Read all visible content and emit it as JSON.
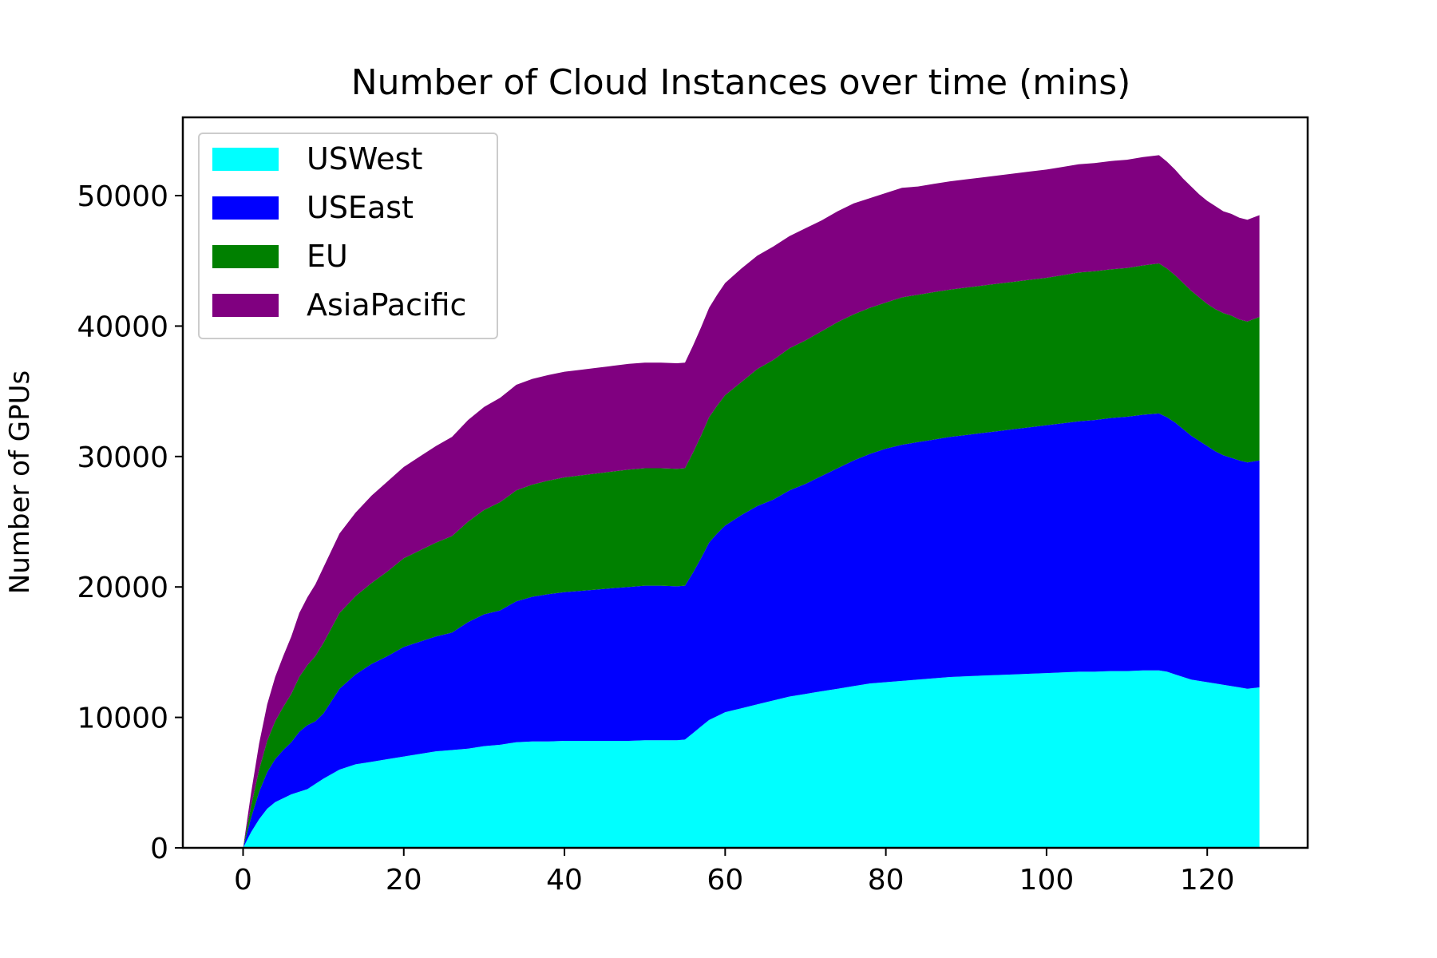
{
  "chart_data": {
    "type": "area",
    "stacked": true,
    "title": "Number of Cloud Instances over time (mins)",
    "xlabel": "",
    "ylabel": "Number of GPUs",
    "xlim": [
      -7.5,
      132.5
    ],
    "ylim": [
      0,
      56000
    ],
    "xticks": [
      0,
      20,
      40,
      60,
      80,
      100,
      120
    ],
    "yticks": [
      0,
      10000,
      20000,
      30000,
      40000,
      50000
    ],
    "legend_position": "upper-left",
    "x": [
      0,
      1,
      2,
      3,
      4,
      5,
      6,
      7,
      8,
      9,
      10,
      12,
      14,
      16,
      18,
      20,
      22,
      24,
      26,
      28,
      30,
      32,
      34,
      36,
      38,
      40,
      42,
      44,
      46,
      48,
      50,
      52,
      54,
      55,
      56,
      57,
      58,
      59,
      60,
      62,
      64,
      66,
      68,
      70,
      72,
      74,
      76,
      78,
      80,
      82,
      84,
      86,
      88,
      90,
      92,
      94,
      96,
      98,
      100,
      102,
      104,
      106,
      108,
      110,
      112,
      114,
      115,
      116,
      117,
      118,
      119,
      120,
      121,
      122,
      123,
      124,
      125,
      126.5
    ],
    "series": [
      {
        "name": "USWest",
        "color": "#00FFFF",
        "values": [
          0,
          1200,
          2200,
          3000,
          3500,
          3800,
          4100,
          4300,
          4500,
          4900,
          5300,
          6000,
          6400,
          6600,
          6800,
          7000,
          7200,
          7400,
          7500,
          7600,
          7800,
          7900,
          8100,
          8150,
          8150,
          8200,
          8200,
          8200,
          8200,
          8200,
          8250,
          8250,
          8250,
          8300,
          8800,
          9300,
          9800,
          10100,
          10400,
          10700,
          11000,
          11300,
          11600,
          11800,
          12000,
          12200,
          12400,
          12600,
          12700,
          12800,
          12900,
          13000,
          13100,
          13150,
          13200,
          13250,
          13300,
          13350,
          13400,
          13450,
          13500,
          13500,
          13550,
          13550,
          13600,
          13600,
          13500,
          13300,
          13100,
          12900,
          12800,
          12700,
          12600,
          12500,
          12400,
          12300,
          12200,
          12300
        ]
      },
      {
        "name": "USEast",
        "color": "#0000FF",
        "values": [
          0,
          1100,
          2100,
          2800,
          3300,
          3700,
          4000,
          4600,
          4900,
          4800,
          5000,
          6200,
          6900,
          7500,
          7900,
          8400,
          8600,
          8800,
          9000,
          9700,
          10100,
          10300,
          10800,
          11100,
          11300,
          11400,
          11500,
          11600,
          11700,
          11800,
          11850,
          11850,
          11800,
          11800,
          12300,
          12900,
          13600,
          14000,
          14300,
          14800,
          15200,
          15400,
          15800,
          16100,
          16500,
          16900,
          17300,
          17600,
          17900,
          18100,
          18200,
          18300,
          18400,
          18500,
          18600,
          18700,
          18800,
          18900,
          19000,
          19100,
          19200,
          19300,
          19400,
          19500,
          19600,
          19700,
          19500,
          19300,
          19000,
          18700,
          18400,
          18100,
          17800,
          17600,
          17500,
          17400,
          17350,
          17400
        ]
      },
      {
        "name": "EU",
        "color": "#008000",
        "values": [
          0,
          900,
          1700,
          2400,
          2900,
          3300,
          3700,
          4200,
          4600,
          5000,
          5400,
          5800,
          6000,
          6200,
          6500,
          6800,
          7000,
          7200,
          7400,
          7700,
          8000,
          8300,
          8500,
          8600,
          8700,
          8800,
          8850,
          8900,
          8950,
          9000,
          9000,
          9000,
          9000,
          9000,
          9200,
          9400,
          9600,
          9800,
          10000,
          10200,
          10500,
          10700,
          10900,
          11000,
          11100,
          11200,
          11200,
          11200,
          11200,
          11300,
          11300,
          11300,
          11300,
          11300,
          11300,
          11300,
          11300,
          11300,
          11300,
          11350,
          11400,
          11400,
          11400,
          11400,
          11450,
          11500,
          11400,
          11300,
          11200,
          11100,
          11000,
          10900,
          10900,
          10900,
          10900,
          10800,
          10800,
          11000
        ]
      },
      {
        "name": "AsiaPacific",
        "color": "#800080",
        "values": [
          0,
          1000,
          2000,
          2800,
          3400,
          3900,
          4400,
          4900,
          5200,
          5500,
          5800,
          6100,
          6400,
          6700,
          6900,
          7000,
          7200,
          7400,
          7600,
          7800,
          7900,
          8000,
          8100,
          8100,
          8100,
          8100,
          8100,
          8100,
          8100,
          8100,
          8100,
          8100,
          8100,
          8100,
          8200,
          8300,
          8400,
          8500,
          8600,
          8700,
          8700,
          8700,
          8600,
          8600,
          8500,
          8500,
          8500,
          8400,
          8400,
          8400,
          8300,
          8300,
          8300,
          8300,
          8300,
          8300,
          8300,
          8300,
          8300,
          8300,
          8300,
          8300,
          8300,
          8300,
          8300,
          8300,
          8200,
          8100,
          8000,
          8000,
          7900,
          7900,
          7900,
          7800,
          7800,
          7800,
          7800,
          7800
        ]
      }
    ]
  }
}
